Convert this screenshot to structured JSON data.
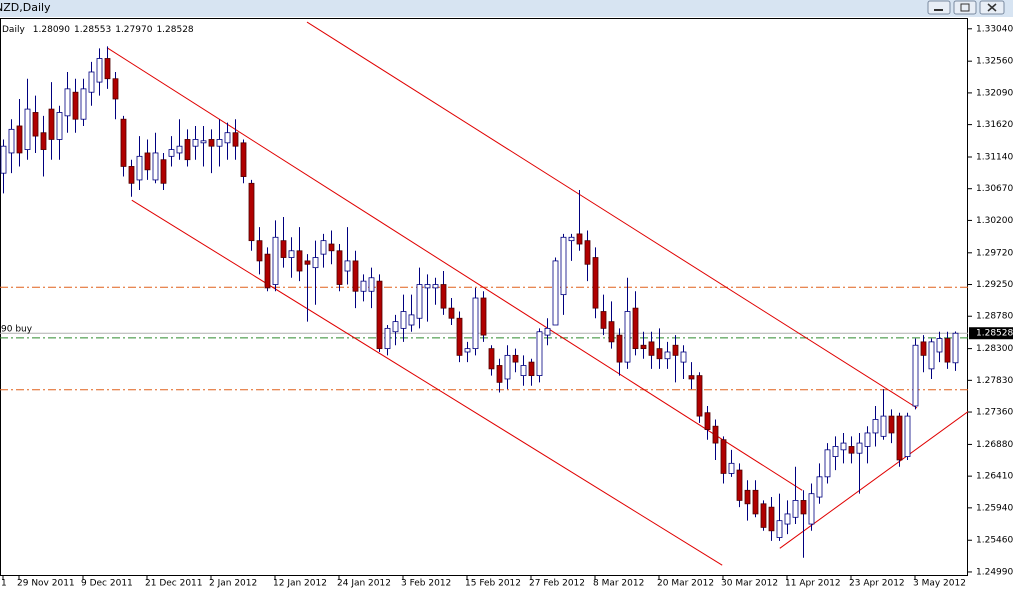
{
  "window_title": "NZD,Daily",
  "chart_data": {
    "type": "candlestick",
    "info": {
      "label": "Daily",
      "values": [
        "1.28090",
        "1.28553",
        "1.27970",
        "1.28528"
      ]
    },
    "categories": [
      "1",
      null,
      "29 Nov 2011",
      null,
      null,
      null,
      null,
      null,
      null,
      null,
      "9 Dec 2011",
      null,
      null,
      null,
      null,
      null,
      null,
      null,
      "21 Dec 2011",
      null,
      null,
      null,
      null,
      null,
      null,
      null,
      "2 Jan 2012",
      null,
      null,
      null,
      null,
      null,
      null,
      null,
      "12 Jan 2012",
      null,
      null,
      null,
      null,
      null,
      null,
      null,
      "24 Jan 2012",
      null,
      null,
      null,
      null,
      null,
      null,
      null,
      "3 Feb 2012",
      null,
      null,
      null,
      null,
      null,
      null,
      null,
      "15 Feb 2012",
      null,
      null,
      null,
      null,
      null,
      null,
      null,
      "27 Feb 2012",
      null,
      null,
      null,
      null,
      null,
      null,
      null,
      "8 Mar 2012",
      null,
      null,
      null,
      null,
      null,
      null,
      null,
      "20 Mar 2012",
      null,
      null,
      null,
      null,
      null,
      null,
      null,
      "30 Mar 2012",
      null,
      null,
      null,
      null,
      null,
      null,
      null,
      "11 Apr 2012",
      null,
      null,
      null,
      null,
      null,
      null,
      null,
      "23 Apr 2012",
      null,
      null,
      null,
      null,
      null,
      null,
      null,
      "3 May 2012",
      null,
      null,
      null,
      null,
      null
    ],
    "open": [
      1.309,
      1.312,
      1.316,
      1.3125,
      1.318,
      1.315,
      1.3185,
      1.314,
      1.3175,
      1.321,
      1.317,
      1.321,
      1.3225,
      1.326,
      1.323,
      1.317,
      1.31,
      1.308,
      1.312,
      1.308,
      1.311,
      1.3115,
      1.312,
      1.314,
      1.313,
      1.3135,
      1.314,
      1.313,
      1.3135,
      1.315,
      1.3135,
      1.3075,
      1.299,
      1.297,
      1.2925,
      1.299,
      1.2965,
      1.2975,
      1.296,
      1.295,
      1.297,
      1.2985,
      1.2975,
      1.2945,
      1.296,
      1.2915,
      1.2915,
      1.293,
      1.283,
      1.2855,
      1.286,
      1.2865,
      1.2875,
      1.292,
      1.292,
      1.2925,
      1.289,
      1.2875,
      1.2825,
      1.283,
      1.2905,
      1.283,
      1.2805,
      1.2785,
      1.282,
      1.279,
      1.281,
      1.279,
      1.285,
      1.2865,
      1.291,
      1.299,
      1.3,
      1.299,
      1.2965,
      1.2885,
      1.287,
      1.285,
      1.281,
      1.289,
      1.2835,
      1.284,
      1.283,
      1.2815,
      1.2835,
      1.281,
      1.279,
      1.279,
      1.2735,
      1.2715,
      1.2695,
      1.2645,
      1.265,
      1.262,
      1.262,
      1.26,
      1.2595,
      1.255,
      1.257,
      1.258,
      1.2605,
      1.257,
      1.261,
      1.264,
      1.267,
      1.268,
      1.2685,
      1.2675,
      1.2685,
      1.2705,
      1.27,
      1.273,
      1.273,
      1.267,
      1.2745,
      1.284,
      1.28,
      1.2825,
      1.2845,
      1.2809
    ],
    "high": [
      1.314,
      1.317,
      1.32,
      1.323,
      1.3205,
      1.3175,
      1.3225,
      1.319,
      1.324,
      1.323,
      1.323,
      1.3255,
      1.3275,
      1.3278,
      1.324,
      1.3175,
      1.311,
      1.3145,
      1.314,
      1.315,
      1.312,
      1.3145,
      1.317,
      1.3155,
      1.316,
      1.316,
      1.3155,
      1.317,
      1.3165,
      1.317,
      1.314,
      1.308,
      1.301,
      1.298,
      1.302,
      1.3025,
      1.2995,
      1.301,
      1.297,
      1.299,
      1.3,
      1.3005,
      1.2985,
      1.301,
      1.2975,
      1.294,
      1.295,
      1.294,
      1.2865,
      1.288,
      1.291,
      1.291,
      1.295,
      1.294,
      1.2935,
      1.2945,
      1.2905,
      1.2885,
      1.284,
      1.292,
      1.2915,
      1.2835,
      1.2815,
      1.2835,
      1.283,
      1.282,
      1.2815,
      1.286,
      1.2875,
      1.2965,
      1.3,
      1.3,
      1.3065,
      1.3005,
      1.298,
      1.291,
      1.29,
      1.286,
      1.2935,
      1.2915,
      1.2855,
      1.2855,
      1.286,
      1.284,
      1.285,
      1.2835,
      1.281,
      1.2795,
      1.2745,
      1.2725,
      1.27,
      1.268,
      1.266,
      1.2635,
      1.2635,
      1.2605,
      1.261,
      1.2615,
      1.2605,
      1.2655,
      1.262,
      1.263,
      1.266,
      1.269,
      1.27,
      1.2705,
      1.27,
      1.2705,
      1.2715,
      1.2745,
      1.277,
      1.274,
      1.2735,
      1.2735,
      1.2845,
      1.285,
      1.2845,
      1.2855,
      1.2855,
      1.28553
    ],
    "low": [
      1.306,
      1.309,
      1.31,
      1.311,
      1.312,
      1.3085,
      1.311,
      1.311,
      1.315,
      1.315,
      1.316,
      1.319,
      1.3205,
      1.3215,
      1.317,
      1.3085,
      1.3055,
      1.3065,
      1.308,
      1.3075,
      1.3065,
      1.31,
      1.311,
      1.31,
      1.311,
      1.31,
      1.309,
      1.31,
      1.311,
      1.311,
      1.3075,
      1.2975,
      1.294,
      1.2915,
      1.2915,
      1.295,
      1.2935,
      1.293,
      1.287,
      1.2895,
      1.295,
      1.2955,
      1.2915,
      1.2925,
      1.289,
      1.29,
      1.289,
      1.2825,
      1.282,
      1.2835,
      1.284,
      1.2855,
      1.286,
      1.287,
      1.2895,
      1.288,
      1.2865,
      1.281,
      1.281,
      1.282,
      1.284,
      1.279,
      1.2765,
      1.277,
      1.2795,
      1.2775,
      1.2775,
      1.278,
      1.2835,
      1.2865,
      1.288,
      1.296,
      1.2975,
      1.293,
      1.2875,
      1.285,
      1.283,
      1.279,
      1.28,
      1.282,
      1.2815,
      1.28,
      1.28,
      1.28,
      1.278,
      1.2785,
      1.277,
      1.272,
      1.2695,
      1.2665,
      1.263,
      1.264,
      1.2595,
      1.2575,
      1.258,
      1.256,
      1.2545,
      1.2545,
      1.2555,
      1.257,
      1.252,
      1.256,
      1.26,
      1.263,
      1.265,
      1.266,
      1.266,
      1.2615,
      1.266,
      1.2685,
      1.2695,
      1.269,
      1.2655,
      1.2665,
      1.274,
      1.2795,
      1.2785,
      1.281,
      1.28,
      1.2797
    ],
    "close": [
      1.313,
      1.3155,
      1.312,
      1.3185,
      1.3145,
      1.3125,
      1.314,
      1.318,
      1.3215,
      1.317,
      1.3215,
      1.324,
      1.326,
      1.323,
      1.32,
      1.31,
      1.3075,
      1.3115,
      1.3095,
      1.312,
      1.3075,
      1.3125,
      1.313,
      1.311,
      1.314,
      1.3138,
      1.313,
      1.314,
      1.315,
      1.313,
      1.3085,
      1.299,
      1.296,
      1.292,
      1.2995,
      1.2965,
      1.2975,
      1.2945,
      1.2955,
      1.2965,
      1.299,
      1.2975,
      1.2925,
      1.296,
      1.2915,
      1.293,
      1.2935,
      1.283,
      1.286,
      1.287,
      1.2885,
      1.288,
      1.2925,
      1.2925,
      1.2925,
      1.289,
      1.2875,
      1.282,
      1.283,
      1.2905,
      1.285,
      1.28,
      1.278,
      1.282,
      1.281,
      1.2805,
      1.279,
      1.2855,
      1.286,
      1.296,
      1.2995,
      1.2995,
      1.2985,
      1.2955,
      1.289,
      1.286,
      1.284,
      1.281,
      1.2885,
      1.283,
      1.283,
      1.282,
      1.2815,
      1.2825,
      1.282,
      1.2825,
      1.2785,
      1.273,
      1.271,
      1.269,
      1.2645,
      1.266,
      1.2605,
      1.26,
      1.2585,
      1.2565,
      1.256,
      1.2575,
      1.2585,
      1.2605,
      1.2585,
      1.2615,
      1.264,
      1.268,
      1.2685,
      1.269,
      1.2675,
      1.269,
      1.2705,
      1.2725,
      1.273,
      1.2705,
      1.2665,
      1.273,
      1.2835,
      1.282,
      1.284,
      1.2845,
      1.281,
      1.28528
    ],
    "bull_color": "#ffffff",
    "bear_color": "#b00000",
    "outline_color": "#00007f",
    "ylim": [
      1.2493,
      1.332
    ],
    "yticks": [
      {
        "value": 1.3304,
        "label": "1.33040"
      },
      {
        "value": 1.3256,
        "label": "1.32560"
      },
      {
        "value": 1.3209,
        "label": "1.32090"
      },
      {
        "value": 1.3162,
        "label": "1.31620"
      },
      {
        "value": 1.3114,
        "label": "1.31140"
      },
      {
        "value": 1.3067,
        "label": "1.30670"
      },
      {
        "value": 1.302,
        "label": "1.30200"
      },
      {
        "value": 1.2972,
        "label": "1.29720"
      },
      {
        "value": 1.2925,
        "label": "1.29250"
      },
      {
        "value": 1.2878,
        "label": "1.28780"
      },
      {
        "value": 1.283,
        "label": "1.28300"
      },
      {
        "value": 1.2783,
        "label": "1.27830"
      },
      {
        "value": 1.2736,
        "label": "1.27360"
      },
      {
        "value": 1.2688,
        "label": "1.26880"
      },
      {
        "value": 1.2641,
        "label": "1.26410"
      },
      {
        "value": 1.2594,
        "label": "1.25940"
      },
      {
        "value": 1.2546,
        "label": "1.25460"
      },
      {
        "value": 1.2499,
        "label": "1.24990"
      }
    ],
    "current_price": {
      "value": 1.28528,
      "label": "1.28528"
    },
    "order_label": "90 buy",
    "levels": [
      {
        "value": 1.2921,
        "color": "#e0601c"
      },
      {
        "value": 1.2769,
        "color": "#e0601c"
      },
      {
        "value": 1.2846,
        "color": "#2e8b2e"
      }
    ],
    "trendlines": [
      {
        "x": [
          38,
          114.25
        ],
        "y": [
          1.3314,
          1.2742
        ],
        "color": "#e00000"
      },
      {
        "x": [
          13,
          99.9
        ],
        "y": [
          1.3276,
          1.262
        ],
        "color": "#e00000"
      },
      {
        "x": [
          16.1,
          89.9
        ],
        "y": [
          1.305,
          1.2509
        ],
        "color": "#e00000"
      },
      {
        "x": [
          97.1,
          120.9
        ],
        "y": [
          1.2534,
          1.2739
        ],
        "color": "#e00000"
      }
    ]
  }
}
